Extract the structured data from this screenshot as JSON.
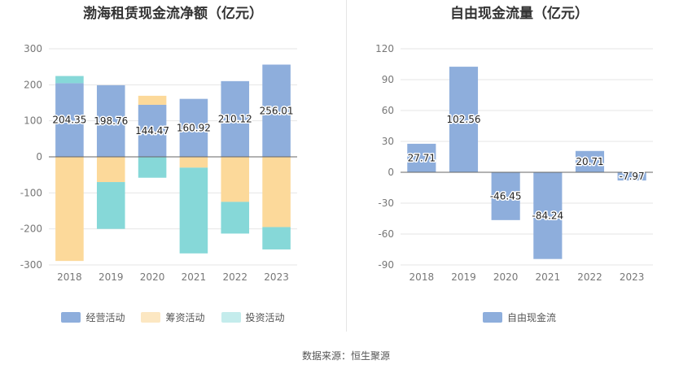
{
  "source_text": "数据来源：恒生聚源",
  "chart_data": [
    {
      "type": "bar",
      "stacked": true,
      "title": "渤海租赁现金流净额（亿元）",
      "categories": [
        "2018",
        "2019",
        "2020",
        "2021",
        "2022",
        "2023"
      ],
      "ylim": [
        -300,
        300
      ],
      "yticks": [
        300,
        200,
        100,
        0,
        -100,
        -200,
        -300
      ],
      "grid": true,
      "legend_position": "bottom",
      "series": [
        {
          "name": "经营活动",
          "color": "#8eaedc",
          "values": [
            204.35,
            198.76,
            144.47,
            160.92,
            210.12,
            256.01
          ]
        },
        {
          "name": "筹资活动",
          "color": "#fcd99a",
          "values": [
            -289,
            -70,
            25,
            -30,
            -125,
            -195
          ]
        },
        {
          "name": "投资活动",
          "color": "#86d8d8",
          "values": [
            20,
            -130,
            -58,
            -238,
            -88,
            -62
          ]
        }
      ],
      "data_labels": [
        "204.35",
        "198.76",
        "144.47",
        "160.92",
        "210.12",
        "256.01"
      ]
    },
    {
      "type": "bar",
      "title": "自由现金流量（亿元）",
      "categories": [
        "2018",
        "2019",
        "2020",
        "2021",
        "2022",
        "2023"
      ],
      "ylim": [
        -90,
        120
      ],
      "yticks": [
        120,
        90,
        60,
        30,
        0,
        -30,
        -60,
        -90
      ],
      "grid": true,
      "legend_position": "bottom",
      "series": [
        {
          "name": "自由现金流",
          "color": "#8eaedc",
          "values": [
            27.71,
            102.56,
            -46.45,
            -84.24,
            20.71,
            -7.97
          ]
        }
      ],
      "data_labels": [
        "27.71",
        "102.56",
        "-46.45",
        "-84.24",
        "20.71",
        "-7.97"
      ]
    }
  ]
}
